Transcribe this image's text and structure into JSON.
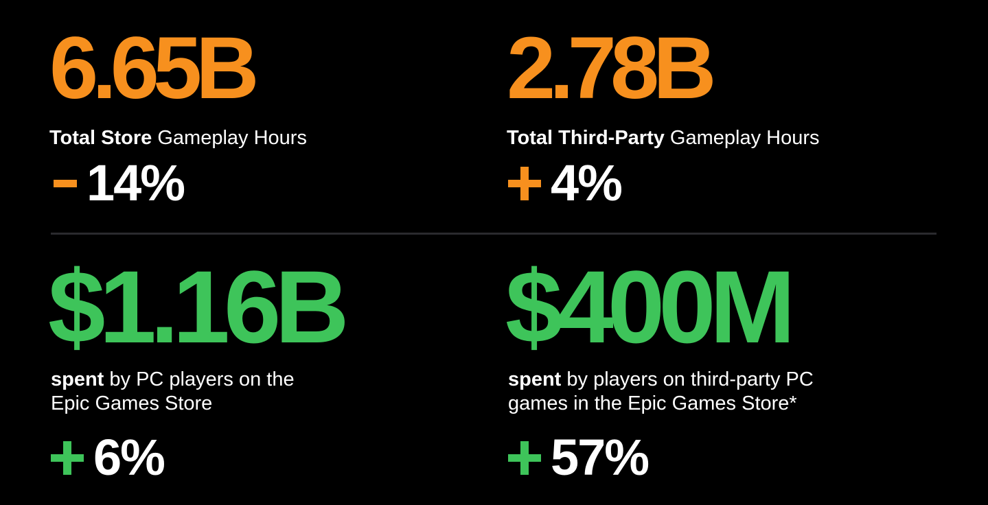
{
  "colors": {
    "orange": "#f7901e",
    "green": "#3ec45a",
    "white": "#ffffff",
    "background": "#000000"
  },
  "stats": [
    {
      "value": "6.65B",
      "desc_bold": "Total Store",
      "desc_rest": " Gameplay Hours",
      "change_sign": "minus",
      "change_value": "14%"
    },
    {
      "value": "2.78B",
      "desc_bold": "Total Third-Party",
      "desc_rest": " Gameplay Hours",
      "change_sign": "plus",
      "change_value": "4%"
    },
    {
      "value": "$1.16B",
      "desc_bold": "spent",
      "desc_line1_rest": " by PC players on the",
      "desc_line2": "Epic Games Store",
      "change_sign": "plus",
      "change_value": "6%"
    },
    {
      "value": "$400M",
      "desc_bold": "spent",
      "desc_line1_rest": " by players on third-party PC",
      "desc_line2": "games in the Epic Games Store*",
      "change_sign": "plus",
      "change_value": "57%"
    }
  ]
}
